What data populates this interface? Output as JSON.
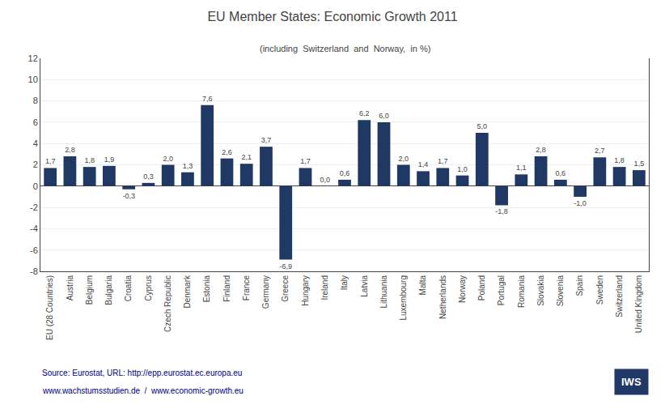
{
  "chart_data": {
    "type": "bar",
    "title": "EU Member States: Economic Growth 2011",
    "subtitle": "(including  Switzerland  and  Norway,  in %)",
    "categories": [
      "EU (28 Countries)",
      "Austria",
      "Belgium",
      "Bulgaria",
      "Croatia",
      "Cyprus",
      "Czech Republic",
      "Denmark",
      "Estonia",
      "Finland",
      "France",
      "Germany",
      "Greece",
      "Hungary",
      "Ireland",
      "Italy",
      "Latvia",
      "Lithuania",
      "Luxembourg",
      "Malta",
      "Netherlands",
      "Norway",
      "Poland",
      "Portugal",
      "Romania",
      "Slovakia",
      "Slovenia",
      "Spain",
      "Sweden",
      "Switzerland",
      "United Kingdom"
    ],
    "values": [
      1.7,
      2.8,
      1.8,
      1.9,
      -0.3,
      0.3,
      2.0,
      1.3,
      7.6,
      2.6,
      2.1,
      3.7,
      -6.9,
      1.7,
      0.0,
      0.6,
      6.2,
      6.0,
      2.0,
      1.4,
      1.7,
      1.0,
      5.0,
      -1.8,
      1.1,
      2.8,
      0.6,
      -1.0,
      2.7,
      1.8,
      1.5
    ],
    "value_labels": [
      "1,7",
      "2,8",
      "1,8",
      "1,9",
      "-0,3",
      "0,3",
      "2,0",
      "1,3",
      "7,6",
      "2,6",
      "2,1",
      "3,7",
      "-6,9",
      "1,7",
      "0,0",
      "0,6",
      "6,2",
      "6,0",
      "2,0",
      "1,4",
      "1,7",
      "1,0",
      "5,0",
      "-1,8",
      "1,1",
      "2,8",
      "0,6",
      "-1,0",
      "2,7",
      "1,8",
      "1,5"
    ],
    "data_labels": true,
    "color": "#1F3864",
    "ylim": [
      -8,
      12
    ],
    "yticks": [
      -8,
      -6,
      -4,
      -2,
      0,
      2,
      4,
      6,
      8,
      10,
      12
    ],
    "grid": true,
    "annotations": [
      "Source: Eurostat, URL: http://epp.eurostat.ec.europa.eu",
      "www.wachstumsstudien.de  /  www.economic-growth.eu",
      "IWS"
    ]
  }
}
